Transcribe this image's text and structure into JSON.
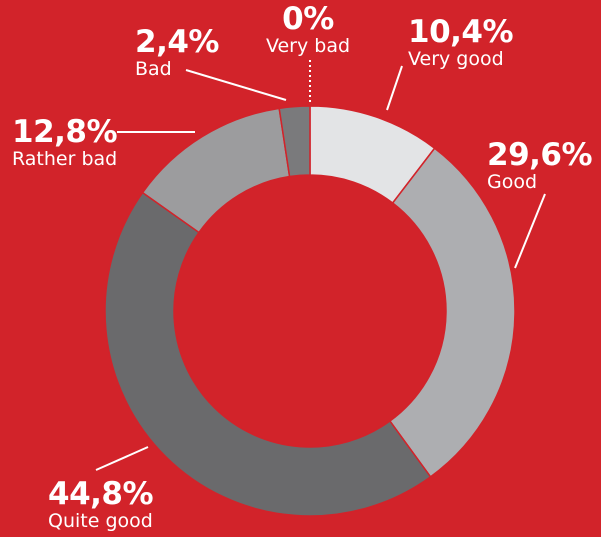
{
  "chart_data": {
    "type": "donut",
    "slices": [
      {
        "label": "Very good",
        "value_label": "10,4%",
        "value": 10.4,
        "color": "#e3e4e6"
      },
      {
        "label": "Good",
        "value_label": "29,6%",
        "value": 29.6,
        "color": "#adaeb1"
      },
      {
        "label": "Quite good",
        "value_label": "44,8%",
        "value": 44.8,
        "color": "#6a6a6c"
      },
      {
        "label": "Rather bad",
        "value_label": "12,8%",
        "value": 12.8,
        "color": "#9c9c9e"
      },
      {
        "label": "Bad",
        "value_label": "2,4%",
        "value": 2.4,
        "color": "#7a7a7c"
      },
      {
        "label": "Very bad",
        "value_label": "0%",
        "value": 0,
        "color": "#ffffff"
      }
    ]
  },
  "colors": {
    "background": "#d2232a",
    "text": "#ffffff"
  }
}
